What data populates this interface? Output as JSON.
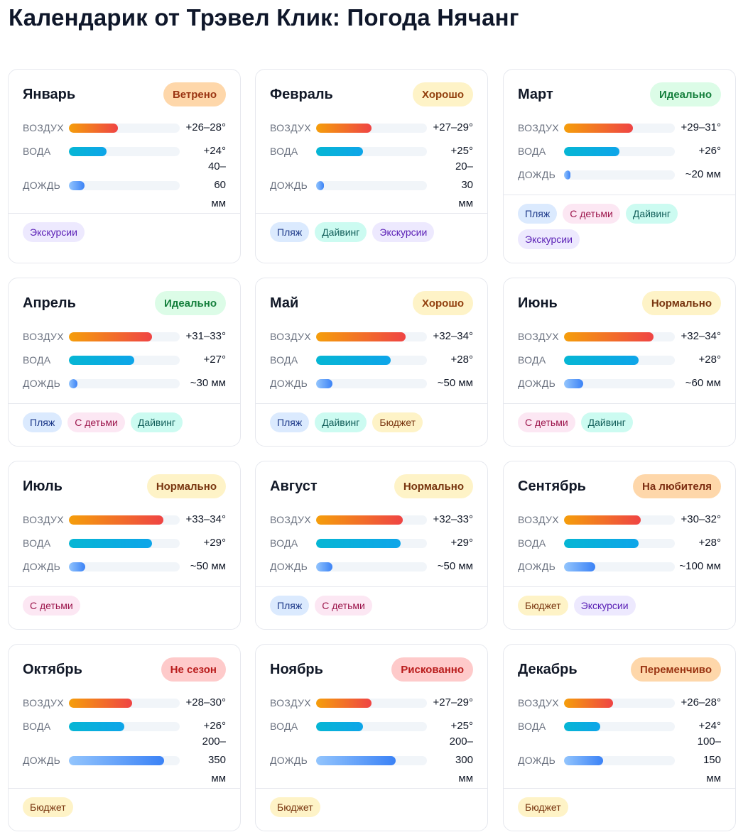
{
  "page": {
    "title": "Календарик от Трэвел Клик: Погода Нячанг"
  },
  "labels": {
    "air": "ВОЗДУХ",
    "water": "ВОДА",
    "rain": "ДОЖДЬ"
  },
  "months": [
    {
      "name": "Январь",
      "status": "Ветрено",
      "status_kind": "windy",
      "air": "+26–28°",
      "air_level": 0.44,
      "water": "+24°",
      "water_level": 0.34,
      "rain": "40–60 мм",
      "rain_level": 0.14,
      "tags": [
        {
          "label": "Экскурсии",
          "kind": "excursions"
        }
      ]
    },
    {
      "name": "Февраль",
      "status": "Хорошо",
      "status_kind": "good",
      "air": "+27–29°",
      "air_level": 0.5,
      "water": "+25°",
      "water_level": 0.42,
      "rain": "20–30 мм",
      "rain_level": 0.07,
      "tags": [
        {
          "label": "Пляж",
          "kind": "beach"
        },
        {
          "label": "Дайвинг",
          "kind": "diving"
        },
        {
          "label": "Экскурсии",
          "kind": "excursions"
        }
      ]
    },
    {
      "name": "Март",
      "status": "Идеально",
      "status_kind": "ideal",
      "air": "+29–31°",
      "air_level": 0.62,
      "water": "+26°",
      "water_level": 0.5,
      "rain": "~20 мм",
      "rain_level": 0.06,
      "tags": [
        {
          "label": "Пляж",
          "kind": "beach"
        },
        {
          "label": "С детьми",
          "kind": "kids"
        },
        {
          "label": "Дайвинг",
          "kind": "diving"
        },
        {
          "label": "Экскурсии",
          "kind": "excursions"
        }
      ]
    },
    {
      "name": "Апрель",
      "status": "Идеально",
      "status_kind": "ideal",
      "air": "+31–33°",
      "air_level": 0.75,
      "water": "+27°",
      "water_level": 0.59,
      "rain": "~30 мм",
      "rain_level": 0.08,
      "tags": [
        {
          "label": "Пляж",
          "kind": "beach"
        },
        {
          "label": "С детьми",
          "kind": "kids"
        },
        {
          "label": "Дайвинг",
          "kind": "diving"
        }
      ]
    },
    {
      "name": "Май",
      "status": "Хорошо",
      "status_kind": "good",
      "air": "+32–34°",
      "air_level": 0.81,
      "water": "+28°",
      "water_level": 0.67,
      "rain": "~50 мм",
      "rain_level": 0.15,
      "tags": [
        {
          "label": "Пляж",
          "kind": "beach"
        },
        {
          "label": "Дайвинг",
          "kind": "diving"
        },
        {
          "label": "Бюджет",
          "kind": "budget"
        }
      ]
    },
    {
      "name": "Июнь",
      "status": "Нормально",
      "status_kind": "normal",
      "air": "+32–34°",
      "air_level": 0.81,
      "water": "+28°",
      "water_level": 0.67,
      "rain": "~60 мм",
      "rain_level": 0.17,
      "tags": [
        {
          "label": "С детьми",
          "kind": "kids"
        },
        {
          "label": "Дайвинг",
          "kind": "diving"
        }
      ]
    },
    {
      "name": "Июль",
      "status": "Нормально",
      "status_kind": "normal",
      "air": "+33–34°",
      "air_level": 0.85,
      "water": "+29°",
      "water_level": 0.75,
      "rain": "~50 мм",
      "rain_level": 0.15,
      "tags": [
        {
          "label": "С детьми",
          "kind": "kids"
        }
      ]
    },
    {
      "name": "Август",
      "status": "Нормально",
      "status_kind": "normal",
      "air": "+32–33°",
      "air_level": 0.78,
      "water": "+29°",
      "water_level": 0.76,
      "rain": "~50 мм",
      "rain_level": 0.15,
      "tags": [
        {
          "label": "Пляж",
          "kind": "beach"
        },
        {
          "label": "С детьми",
          "kind": "kids"
        }
      ]
    },
    {
      "name": "Сентябрь",
      "status": "На любителя",
      "status_kind": "amateur",
      "air": "+30–32°",
      "air_level": 0.69,
      "water": "+28°",
      "water_level": 0.67,
      "rain": "~100 мм",
      "rain_level": 0.28,
      "tags": [
        {
          "label": "Бюджет",
          "kind": "budget"
        },
        {
          "label": "Экскурсии",
          "kind": "excursions"
        }
      ]
    },
    {
      "name": "Октябрь",
      "status": "Не сезон",
      "status_kind": "off",
      "air": "+28–30°",
      "air_level": 0.57,
      "water": "+26°",
      "water_level": 0.5,
      "rain": "200–350 мм",
      "rain_level": 0.86,
      "tags": [
        {
          "label": "Бюджет",
          "kind": "budget"
        }
      ]
    },
    {
      "name": "Ноябрь",
      "status": "Рискованно",
      "status_kind": "risky",
      "air": "+27–29°",
      "air_level": 0.5,
      "water": "+25°",
      "water_level": 0.42,
      "rain": "200–300 мм",
      "rain_level": 0.72,
      "tags": [
        {
          "label": "Бюджет",
          "kind": "budget"
        }
      ]
    },
    {
      "name": "Декабрь",
      "status": "Переменчиво",
      "status_kind": "variable",
      "air": "+26–28°",
      "air_level": 0.44,
      "water": "+24°",
      "water_level": 0.33,
      "rain": "100–150 мм",
      "rain_level": 0.35,
      "tags": [
        {
          "label": "Бюджет",
          "kind": "budget"
        }
      ]
    }
  ]
}
